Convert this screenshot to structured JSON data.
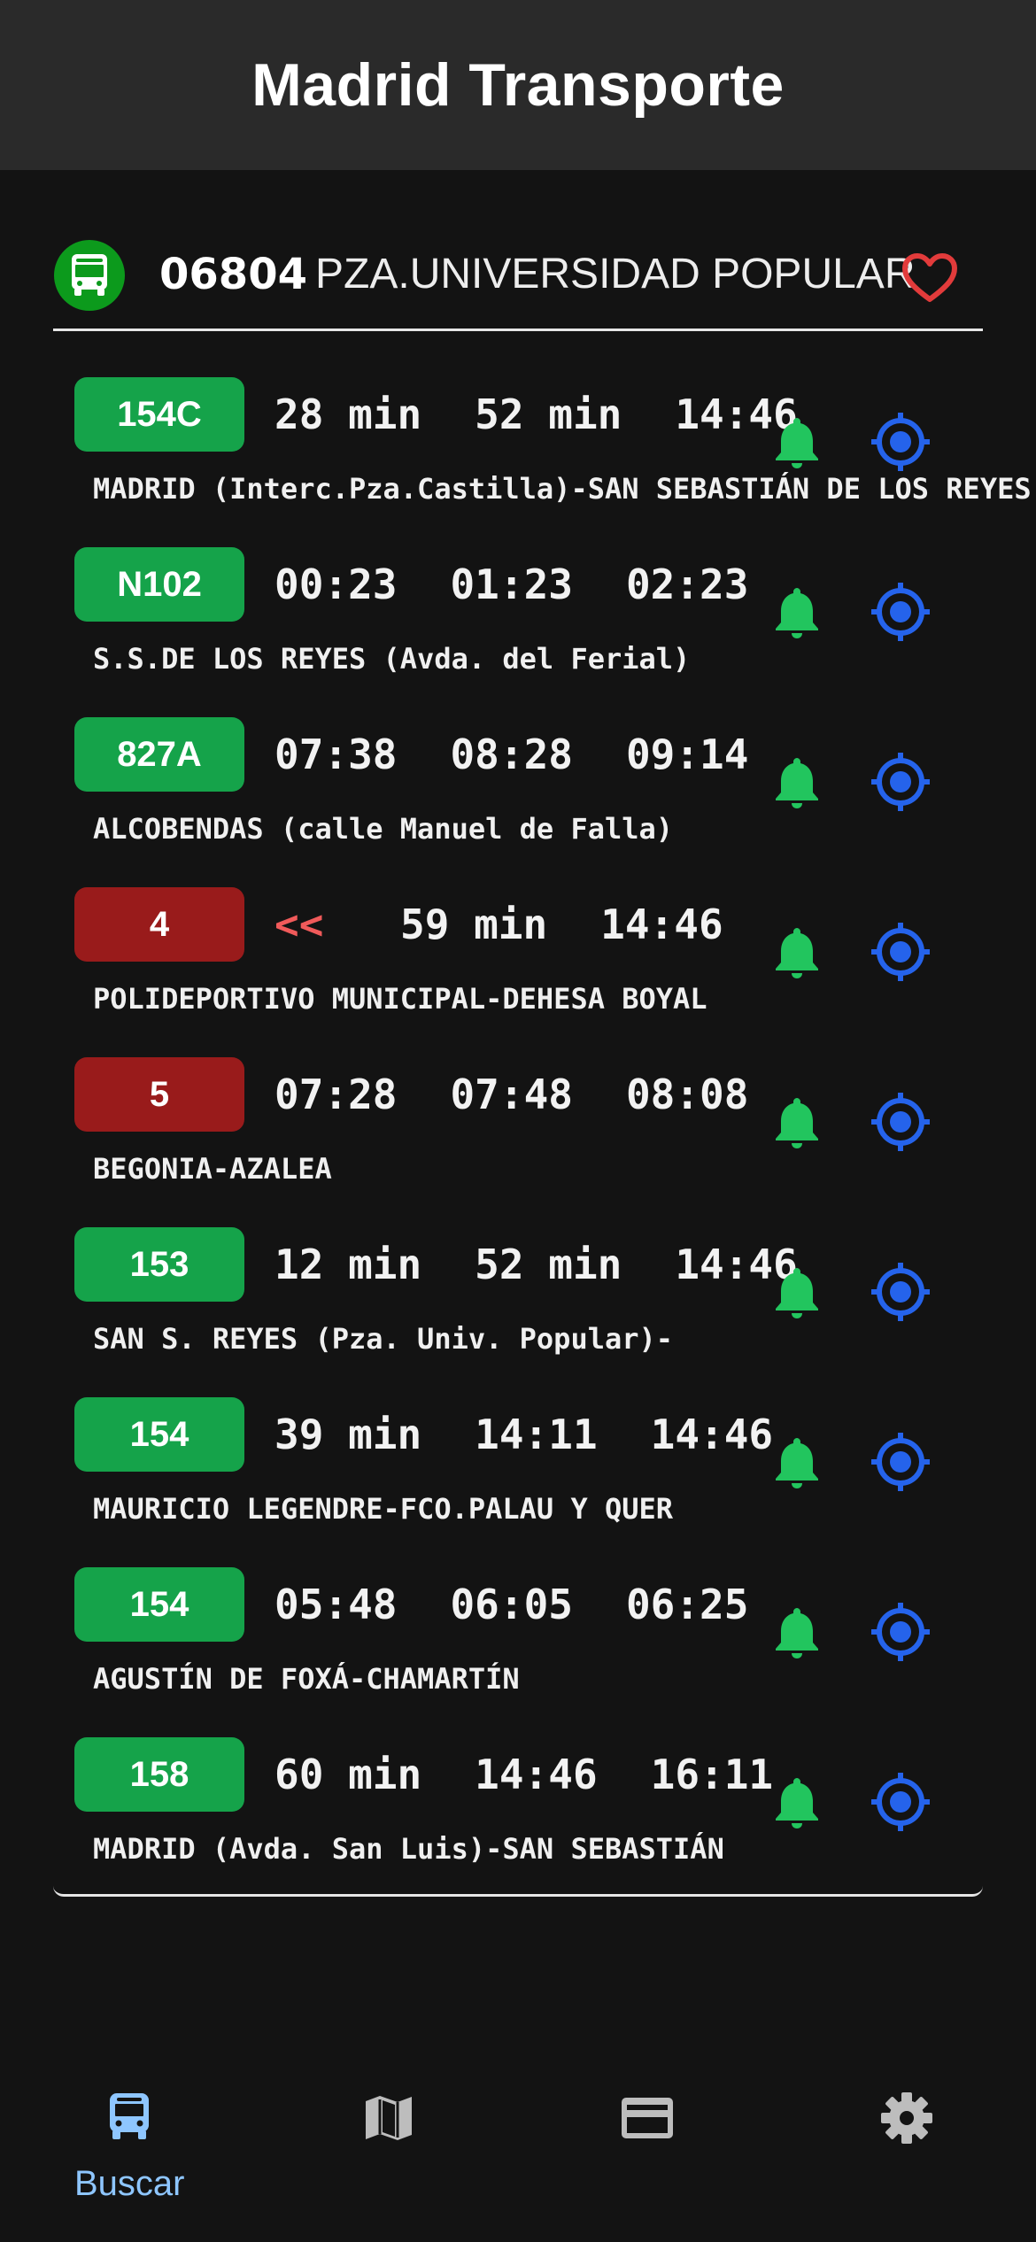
{
  "header": {
    "title": "Madrid Transporte"
  },
  "stop": {
    "number": "06804",
    "name": "PZA.UNIVERSIDAD POPULAR",
    "type_icon": "bus-icon",
    "favorite_icon": "heart-outline-icon",
    "type_color": "#0c9a1c",
    "favorite_color": "#e23b3b"
  },
  "colors": {
    "line_green": "#15a34a",
    "line_red": "#991b1b",
    "bell": "#22c55e",
    "locate": "#2563eb",
    "nav_active": "#8ec6ff",
    "nav_inactive": "#bdbdbd"
  },
  "lines": [
    {
      "line": "154C",
      "color": "green",
      "times": [
        "28 min",
        "52 min",
        "14:46"
      ],
      "destination": "MADRID (Interc.Pza.Castilla)-SAN SEBASTIÁN DE LOS REYES"
    },
    {
      "line": "N102",
      "color": "green",
      "times": [
        "00:23",
        "01:23",
        "02:23"
      ],
      "destination": "S.S.DE LOS REYES (Avda. del Ferial)"
    },
    {
      "line": "827A",
      "color": "green",
      "times": [
        "07:38",
        "08:28",
        "09:14"
      ],
      "destination": "ALCOBENDAS (calle Manuel de Falla)"
    },
    {
      "line": "4",
      "color": "red",
      "prev": "<<",
      "times": [
        "59 min",
        "14:46"
      ],
      "destination": "POLIDEPORTIVO MUNICIPAL-DEHESA BOYAL"
    },
    {
      "line": "5",
      "color": "red",
      "times": [
        "07:28",
        "07:48",
        "08:08"
      ],
      "destination": "BEGONIA-AZALEA"
    },
    {
      "line": "153",
      "color": "green",
      "times": [
        "12 min",
        "52 min",
        "14:46"
      ],
      "destination": "SAN S. REYES (Pza. Univ. Popular)-"
    },
    {
      "line": "154",
      "color": "green",
      "times": [
        "39 min",
        "14:11",
        "14:46"
      ],
      "destination": "MAURICIO LEGENDRE-FCO.PALAU Y QUER"
    },
    {
      "line": "154",
      "color": "green",
      "times": [
        "05:48",
        "06:05",
        "06:25"
      ],
      "destination": "AGUSTÍN DE FOXÁ-CHAMARTÍN"
    },
    {
      "line": "158",
      "color": "green",
      "times": [
        "60 min",
        "14:46",
        "16:11"
      ],
      "destination": "MADRID (Avda. San Luis)-SAN SEBASTIÁN"
    }
  ],
  "row_icons": {
    "alert": "bell-icon",
    "locate": "locate-icon"
  },
  "nav": [
    {
      "id": "buscar",
      "label": "Buscar",
      "icon": "bus-icon",
      "active": true
    },
    {
      "id": "mapa",
      "label": "",
      "icon": "map-icon",
      "active": false
    },
    {
      "id": "tarjeta",
      "label": "",
      "icon": "card-icon",
      "active": false
    },
    {
      "id": "ajustes",
      "label": "",
      "icon": "gear-icon",
      "active": false
    }
  ]
}
